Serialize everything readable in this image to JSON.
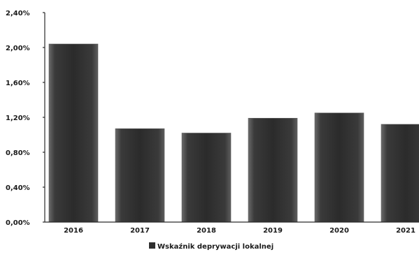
{
  "chart_data": {
    "type": "bar",
    "categories": [
      "2016",
      "2017",
      "2018",
      "2019",
      "2020",
      "2021"
    ],
    "series": [
      {
        "name": "Wskaźnik deprywacji lokalnej",
        "values": [
          2.04,
          1.07,
          1.02,
          1.19,
          1.25,
          1.12
        ]
      }
    ],
    "y_ticks": [
      "0,00%",
      "0,40%",
      "0,80%",
      "1,20%",
      "1,60%",
      "2,00%",
      "2,40%"
    ],
    "ylim": [
      0,
      2.4
    ],
    "y_tick_step": 0.4,
    "legend_position": "bottom",
    "grid": false,
    "colors": {
      "bar": "#2e2e2e",
      "bar_edge": "#5a5a5a",
      "axis": "#2a2a2a",
      "text": "#1a1a1a"
    }
  }
}
